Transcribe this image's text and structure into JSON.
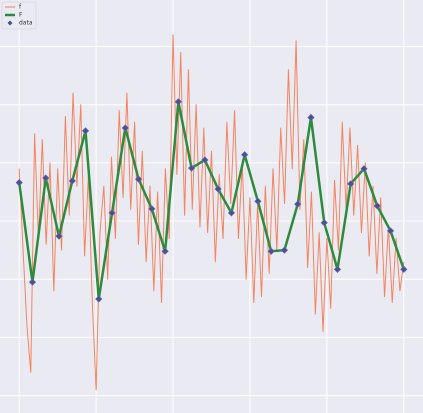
{
  "chart_data": {
    "type": "line",
    "xlim": [
      -0.25,
      5.25
    ],
    "xticks": [
      0,
      1,
      2,
      3,
      4,
      5
    ],
    "ylim": [
      -3.3,
      3.8
    ],
    "yticks": [
      -3,
      -2,
      -1,
      0,
      1,
      2,
      3
    ],
    "grid": true,
    "legend": "upper left",
    "series": [
      {
        "name": "f",
        "color": "#f4845f",
        "style": "line",
        "width": 1,
        "x": [
          0,
          0.05,
          0.1,
          0.15,
          0.2,
          0.25,
          0.3,
          0.35,
          0.4,
          0.45,
          0.5,
          0.55,
          0.6,
          0.65,
          0.7,
          0.75,
          0.8,
          0.85,
          0.9,
          0.95,
          1.0,
          1.05,
          1.1,
          1.15,
          1.2,
          1.25,
          1.3,
          1.35,
          1.4,
          1.45,
          1.5,
          1.55,
          1.6,
          1.65,
          1.7,
          1.75,
          1.8,
          1.85,
          1.9,
          1.95,
          2.0,
          2.05,
          2.1,
          2.15,
          2.2,
          2.25,
          2.3,
          2.35,
          2.4,
          2.45,
          2.5,
          2.55,
          2.6,
          2.65,
          2.7,
          2.75,
          2.8,
          2.85,
          2.9,
          2.95,
          3.0,
          3.05,
          3.1,
          3.15,
          3.2,
          3.25,
          3.3,
          3.35,
          3.4,
          3.45,
          3.5,
          3.55,
          3.6,
          3.65,
          3.7,
          3.75,
          3.8,
          3.85,
          3.9,
          3.95,
          4.0,
          4.05,
          4.1,
          4.15,
          4.2,
          4.25,
          4.3,
          4.35,
          4.4,
          4.45,
          4.5,
          4.55,
          4.6,
          4.65,
          4.7,
          4.75,
          4.8,
          4.85,
          4.9,
          4.95,
          5.0
        ],
        "values": [
          0.9,
          -0.5,
          -1.8,
          -2.6,
          1.5,
          -0.3,
          1.4,
          -0.4,
          1.0,
          -1.2,
          0.9,
          -0.5,
          1.8,
          0.1,
          2.2,
          0.6,
          2.0,
          -0.6,
          0.8,
          -1.4,
          -2.9,
          -0.2,
          0.6,
          -1.0,
          1.1,
          -0.3,
          1.9,
          0.4,
          2.2,
          0.2,
          1.7,
          -0.4,
          1.2,
          -0.7,
          0.6,
          -1.2,
          0.5,
          -1.4,
          0.9,
          -0.3,
          3.2,
          0.8,
          2.9,
          0.1,
          2.6,
          0.2,
          2.0,
          -0.1,
          1.6,
          -0.2,
          1.2,
          -0.7,
          0.8,
          -0.3,
          1.7,
          0.3,
          1.9,
          -0.3,
          1.0,
          -1.0,
          0.4,
          -1.4,
          0.3,
          -1.3,
          0.6,
          -0.9,
          0.9,
          -0.5,
          1.6,
          0.3,
          2.6,
          0.9,
          3.1,
          0.2,
          1.4,
          -0.8,
          0.5,
          -1.6,
          -0.2,
          -1.9,
          -0.3,
          -1.5,
          0.7,
          -0.5,
          1.7,
          0.2,
          1.6,
          0.1,
          1.3,
          -0.2,
          1.0,
          -0.6,
          0.6,
          -0.9,
          0.4,
          -1.3,
          -0.1,
          -1.4,
          -0.3,
          -1.2,
          -0.7
        ]
      },
      {
        "name": "F",
        "color": "#2e8b3e",
        "style": "line",
        "width": 2.5,
        "x": [
          0,
          0.172,
          0.345,
          0.517,
          0.69,
          0.862,
          1.034,
          1.207,
          1.379,
          1.552,
          1.724,
          1.897,
          2.069,
          2.241,
          2.414,
          2.586,
          2.759,
          2.931,
          3.103,
          3.276,
          3.448,
          3.621,
          3.793,
          3.966,
          4.138,
          4.31,
          4.483,
          4.655,
          4.828,
          5.0
        ],
        "values": [
          0.66,
          -1.05,
          0.74,
          -0.26,
          0.69,
          1.55,
          -1.34,
          0.14,
          1.6,
          0.72,
          0.21,
          -0.52,
          2.05,
          0.91,
          1.05,
          0.55,
          0.14,
          1.14,
          0.34,
          -0.52,
          -0.5,
          0.29,
          1.78,
          -0.03,
          -0.83,
          0.64,
          0.9,
          0.26,
          -0.17,
          -0.83
        ]
      },
      {
        "name": "data",
        "color": "#4a5090",
        "style": "scatter",
        "x": [
          0,
          0.172,
          0.345,
          0.517,
          0.69,
          0.862,
          1.034,
          1.207,
          1.379,
          1.552,
          1.724,
          1.897,
          2.069,
          2.241,
          2.414,
          2.586,
          2.759,
          2.931,
          3.103,
          3.276,
          3.448,
          3.621,
          3.793,
          3.966,
          4.138,
          4.31,
          4.483,
          4.655,
          4.828,
          5.0
        ],
        "values": [
          0.66,
          -1.05,
          0.74,
          -0.26,
          0.69,
          1.55,
          -1.34,
          0.14,
          1.6,
          0.72,
          0.21,
          -0.52,
          2.05,
          0.91,
          1.05,
          0.55,
          0.14,
          1.14,
          0.34,
          -0.52,
          -0.5,
          0.29,
          1.78,
          -0.03,
          -0.83,
          0.64,
          0.9,
          0.26,
          -0.17,
          -0.83
        ]
      }
    ]
  }
}
